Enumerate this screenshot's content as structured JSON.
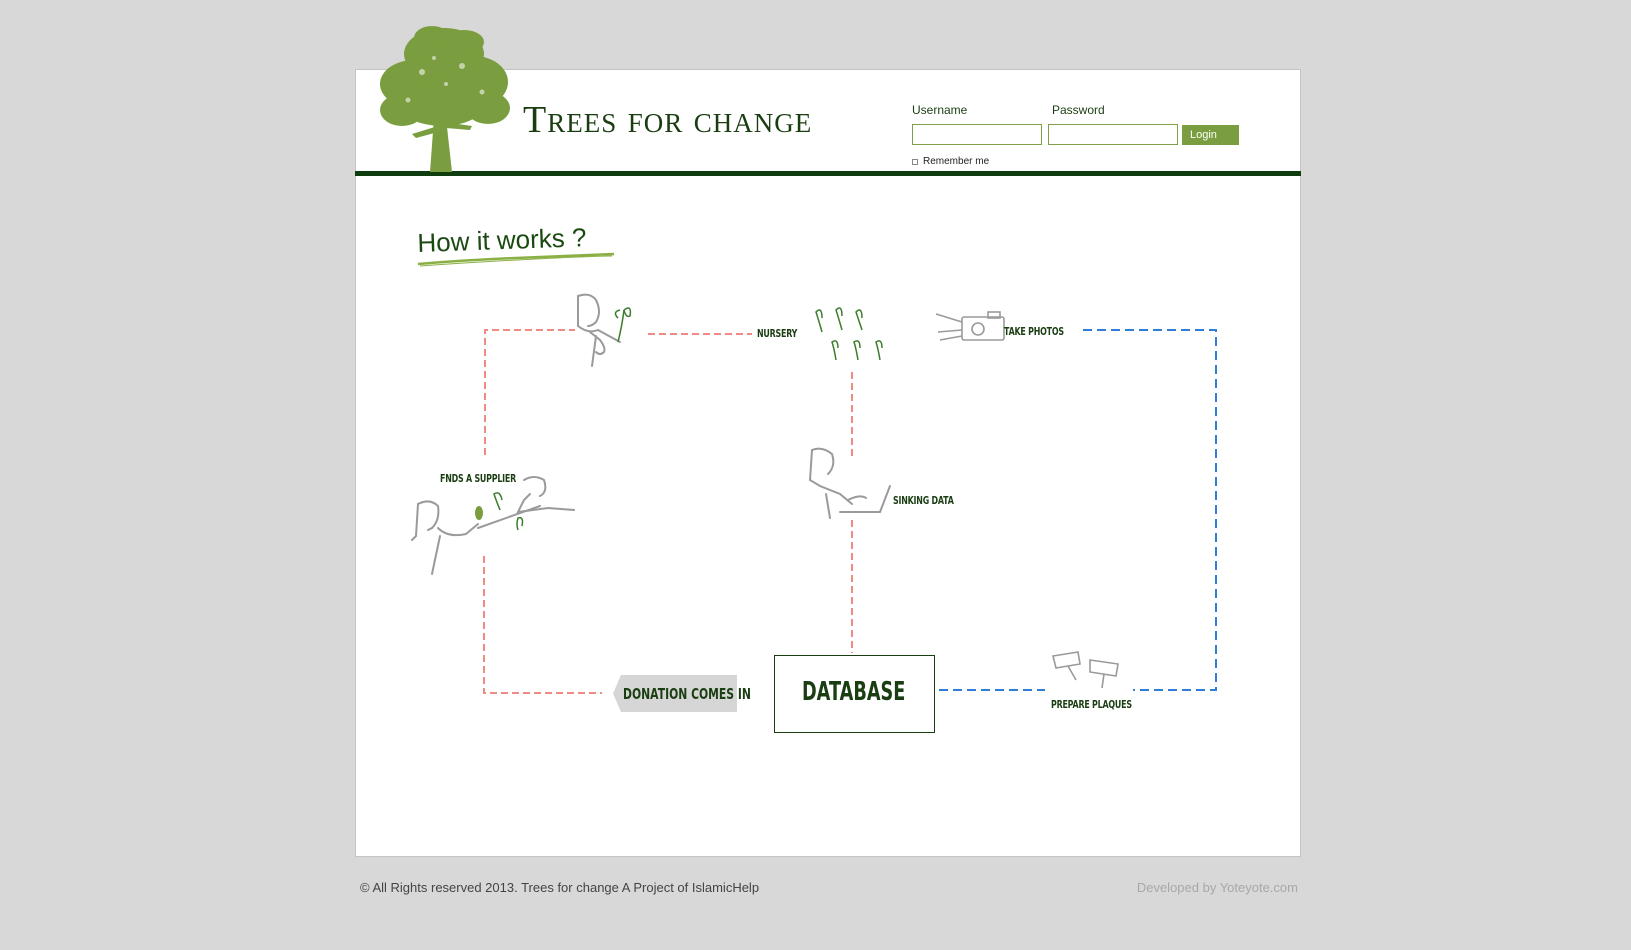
{
  "header": {
    "brand_title": "Trees for change",
    "login": {
      "username_label": "Username",
      "password_label": "Password",
      "username_value": "",
      "password_value": "",
      "login_button": "Login",
      "remember_me": "Remember me"
    }
  },
  "main": {
    "heading": "How it works ?",
    "diagram": {
      "nursery": "NURSERY",
      "take_photos": "TAKE PHOTOS",
      "finds_supplier": "FNDS A SUPPLIER",
      "sinking_data": "SINKING DATA",
      "donation_comes_in": "DONATION COMES IN",
      "database": "DATABASE",
      "prepare_plaques": "PREPARE PLAQUES"
    }
  },
  "footer": {
    "copyright": "© All Rights reserved 2013. Trees for change A Project of IslamicHelp",
    "developer": "Developed by Yoteyote.com"
  },
  "colors": {
    "background": "#d8d8d8",
    "brand_green": "#1a3d12",
    "accent_green": "#7a9e3f",
    "red_dash": "#f08a85",
    "blue_dash": "#2f7fd6"
  }
}
